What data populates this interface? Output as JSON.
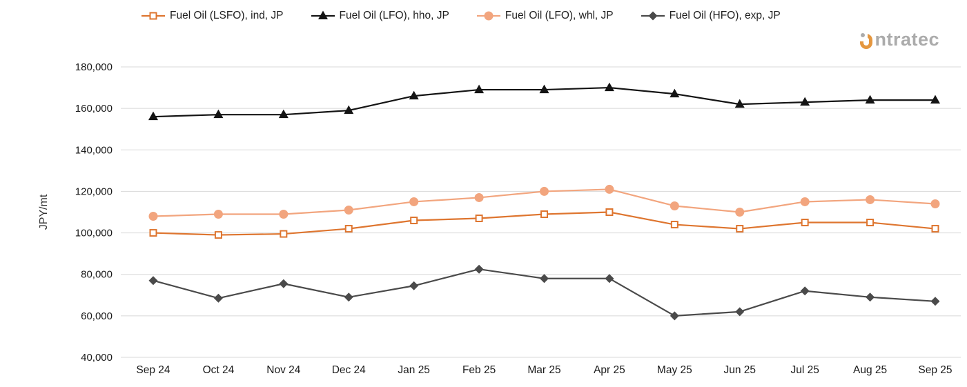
{
  "logo": {
    "text": "ntratec",
    "accent_color": "#E5973F",
    "text_color": "#ABABAB"
  },
  "chart_data": {
    "type": "line",
    "title": "",
    "xlabel": "",
    "ylabel": "JPY/mt",
    "ylim": [
      40000,
      180000
    ],
    "ytick_step": 20000,
    "grid": "horizontal",
    "legend_position": "top",
    "categories": [
      "Sep 24",
      "Oct 24",
      "Nov 24",
      "Dec 24",
      "Jan 25",
      "Feb 25",
      "Mar 25",
      "Apr 25",
      "May 25",
      "Jun 25",
      "Jul 25",
      "Aug 25",
      "Sep 25"
    ],
    "series": [
      {
        "name": "Fuel Oil (LSFO), ind, JP",
        "color": "#DE752F",
        "marker": "square-open",
        "values": [
          100000,
          99000,
          99500,
          102000,
          106000,
          107000,
          109000,
          110000,
          104000,
          102000,
          105000,
          105000,
          102000
        ]
      },
      {
        "name": "Fuel Oil (LFO), hho, JP",
        "color": "#141414",
        "marker": "triangle",
        "values": [
          156000,
          157000,
          157000,
          159000,
          166000,
          169000,
          169000,
          170000,
          167000,
          162000,
          163000,
          164000,
          164000
        ]
      },
      {
        "name": "Fuel Oil (LFO), whl, JP",
        "color": "#F2A57E",
        "marker": "circle",
        "values": [
          108000,
          109000,
          109000,
          111000,
          115000,
          117000,
          120000,
          121000,
          113000,
          110000,
          115000,
          116000,
          114000
        ]
      },
      {
        "name": "Fuel Oil (HFO), exp, JP",
        "color": "#4A4A4A",
        "marker": "diamond",
        "values": [
          77000,
          68500,
          75500,
          69000,
          74500,
          82500,
          78000,
          78000,
          60000,
          62000,
          72000,
          69000,
          67000
        ]
      }
    ]
  }
}
